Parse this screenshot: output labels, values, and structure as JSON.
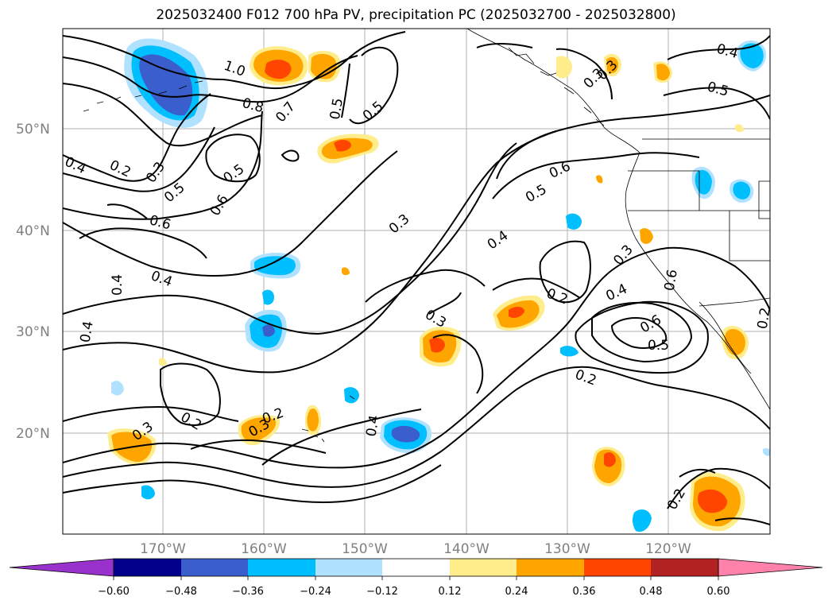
{
  "title": "2025032400 F012 700 hPa PV, precipitation PC (2025032700 - 2025032800)",
  "map": {
    "lon_range": [
      -180,
      -110
    ],
    "lat_range": [
      10,
      60
    ],
    "lat_labels": [
      "50°N",
      "40°N",
      "30°N",
      "20°N"
    ],
    "lon_labels": [
      "170°W",
      "160°W",
      "150°W",
      "140°W",
      "130°W",
      "120°W"
    ],
    "gridlines": true
  },
  "contour_labels": [
    "1.0",
    "0.8",
    "0.7",
    "0.5",
    "0.5",
    "0.3",
    "0.4",
    "0.2",
    "0.3",
    "0.5",
    "0.6",
    "0.5",
    "0.6",
    "0.6",
    "0.4",
    "0.4",
    "0.4",
    "0.3",
    "0.4",
    "0.3",
    "0.5",
    "0.6",
    "0.3",
    "0.2",
    "0.4",
    "0.6",
    "0.5",
    "0.3",
    "0.2",
    "0.2",
    "0.3",
    "0.2",
    "0.3",
    "0.4",
    "0.2",
    "0.4",
    "0.2",
    "0.5"
  ],
  "colorbar": {
    "ticks": [
      "−0.60",
      "−0.48",
      "−0.36",
      "−0.24",
      "−0.12",
      "0.12",
      "0.24",
      "0.36",
      "0.48",
      "0.60"
    ],
    "colors": [
      "#9932cc",
      "#00008b",
      "#3a5fcd",
      "#00bfff",
      "#b0e2ff",
      "#ffffff",
      "#ffec8b",
      "#ffa500",
      "#ff4500",
      "#b22222",
      "#ff82ab"
    ]
  }
}
